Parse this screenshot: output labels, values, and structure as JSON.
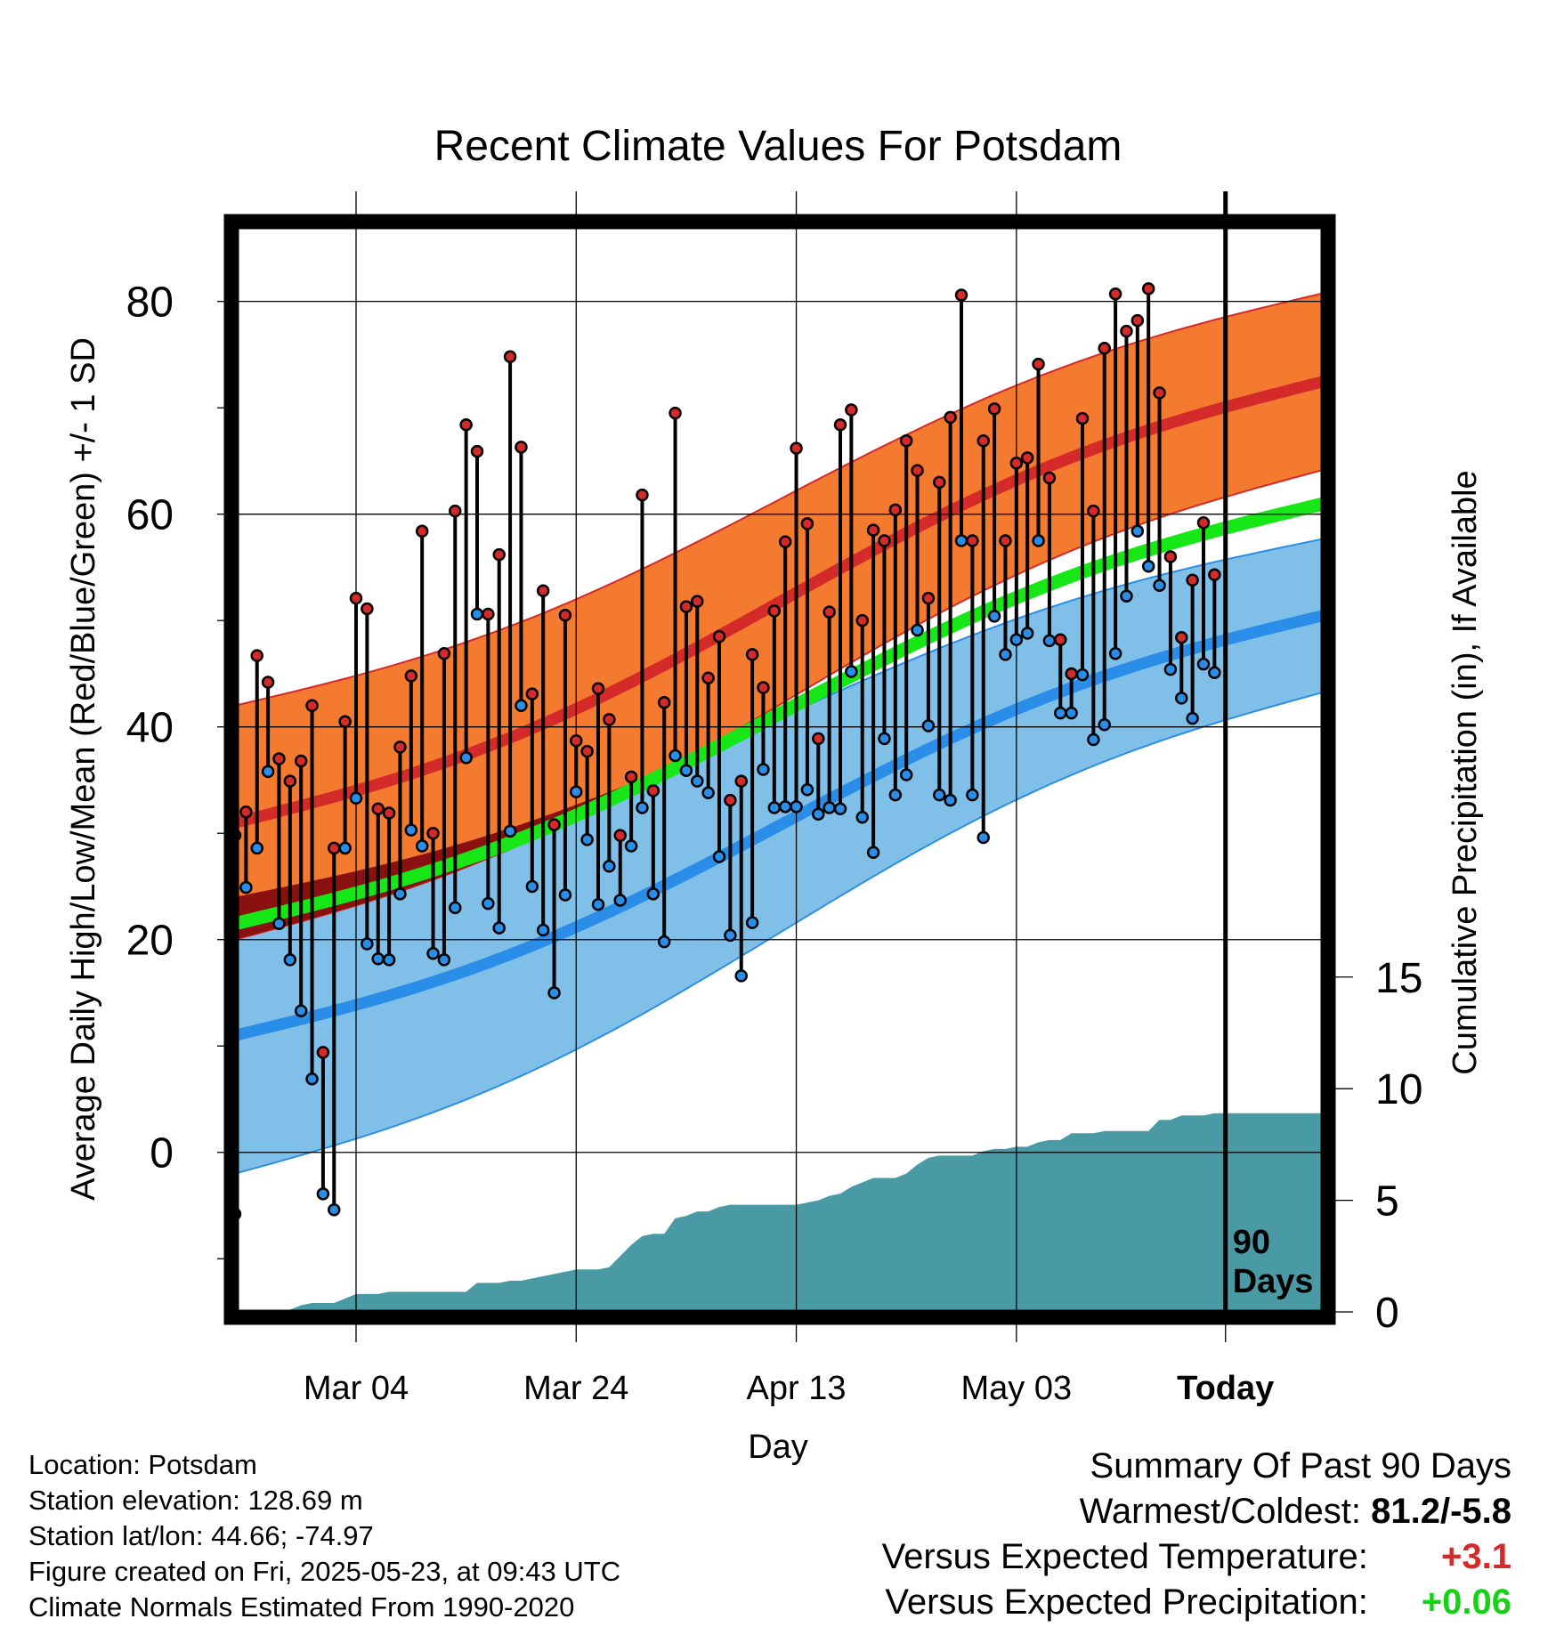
{
  "chart_data": {
    "type": "line",
    "title": "Recent Climate Values For Potsdam",
    "xlabel": "Day",
    "ylabel": "Average Daily High/Low/Mean (Red/Blue/Green) +/- 1 SD",
    "ylabel_right": "Cumulative Precipitation (in), If Available",
    "x_ticks": [
      "Mar 04",
      "Mar 24",
      "Apr 13",
      "May 03",
      "Today"
    ],
    "x_range_days": [
      -90,
      9
    ],
    "today_label": "90\nDays",
    "y_ticks": [
      0,
      20,
      40,
      60,
      80
    ],
    "ylim": [
      -15,
      87
    ],
    "y2_ticks": [
      0,
      5,
      10,
      15
    ],
    "y2lim": [
      0,
      48.6
    ],
    "grid": true,
    "colors": {
      "high_band": "#f47a30",
      "high_mean": "#d42a2a",
      "low_band": "#80c0e8",
      "low_mean": "#2a8ee8",
      "mean_line": "#17e617",
      "overlap": "#8b1010",
      "precip": "#4a9aa6",
      "obs_high": "#d42a2a",
      "obs_low": "#2a8ee8"
    },
    "normals": {
      "high_mean": {
        "start": 31,
        "end": 72.5
      },
      "high_sd": {
        "start": 11,
        "end": 8.3
      },
      "low_mean": {
        "start": 11,
        "end": 50.5
      },
      "low_sd": {
        "start": 13,
        "end": 7.2
      },
      "mean": {
        "start": 21.5,
        "end": 61
      }
    },
    "series": [
      {
        "name": "High",
        "values": [
          29.8,
          32,
          46.7,
          44.2,
          37,
          34.9,
          36.8,
          42,
          9.4,
          28.6,
          40.5,
          52.1,
          51.1,
          32.3,
          31.9,
          38.1,
          44.8,
          58.4,
          30,
          46.9,
          60.3,
          68.4,
          65.9,
          50.6,
          56.2,
          74.8,
          66.3,
          43.1,
          52.8,
          30.8,
          50.5,
          38.7,
          37.7,
          43.6,
          40.7,
          29.8,
          35.3,
          61.8,
          34,
          42.3,
          69.5,
          51.3,
          51.8,
          44.6,
          48.5,
          33.1,
          34.9,
          46.8,
          43.7,
          50.9,
          57.4,
          66.2,
          59.1,
          38.9,
          50.8,
          68.4,
          69.8,
          50,
          58.5,
          57.5,
          60.4,
          66.9,
          64.1,
          52.1,
          63,
          69.1,
          80.6,
          57.5,
          66.9,
          69.9,
          57.5,
          64.8,
          65.3,
          74.1,
          63.4,
          48.2,
          45,
          69,
          60.3,
          75.6,
          80.7,
          77.2,
          78.2,
          81.2,
          71.4,
          56,
          48.4,
          53.8,
          59.2,
          54.3
        ]
      },
      {
        "name": "Low",
        "values": [
          -5.8,
          24.9,
          28.6,
          35.8,
          21.5,
          18.1,
          13.3,
          6.9,
          -3.9,
          -5.4,
          28.6,
          33.3,
          19.6,
          18.2,
          18.1,
          24.3,
          30.3,
          28.8,
          18.7,
          18.1,
          23,
          37.1,
          50.6,
          23.4,
          21.1,
          30.2,
          42,
          25,
          20.9,
          15,
          24.2,
          33.9,
          29.4,
          23.3,
          26.9,
          23.7,
          28.8,
          32.4,
          24.3,
          19.8,
          37.3,
          35.9,
          34.9,
          33.8,
          27.8,
          20.4,
          16.6,
          21.6,
          36,
          32.4,
          32.5,
          32.5,
          34.1,
          31.8,
          32.4,
          32.3,
          45.2,
          31.5,
          28.2,
          38.9,
          33.6,
          35.5,
          49.1,
          40.1,
          33.6,
          33.1,
          57.5,
          33.6,
          29.6,
          50.4,
          46.8,
          48.2,
          48.8,
          57.5,
          48.1,
          41.3,
          41.3,
          44.9,
          38.8,
          40.2,
          46.9,
          52.3,
          58.4,
          55.1,
          53.3,
          45.4,
          42.7,
          40.8,
          45.9,
          45.1
        ]
      }
    ],
    "precip_cumulative": [
      0,
      0,
      0,
      0,
      0,
      0.1,
      0.3,
      0.4,
      0.4,
      0.4,
      0.6,
      0.8,
      0.8,
      0.8,
      0.9,
      0.9,
      0.9,
      0.9,
      0.9,
      0.9,
      0.9,
      0.9,
      1.3,
      1.3,
      1.3,
      1.4,
      1.4,
      1.5,
      1.6,
      1.7,
      1.8,
      1.9,
      1.9,
      1.9,
      2.0,
      2.5,
      3.0,
      3.4,
      3.5,
      3.5,
      4.2,
      4.3,
      4.5,
      4.5,
      4.7,
      4.8,
      4.8,
      4.8,
      4.8,
      4.8,
      4.8,
      4.8,
      4.9,
      5.0,
      5.2,
      5.3,
      5.6,
      5.8,
      6.0,
      6.0,
      6.0,
      6.2,
      6.6,
      6.9,
      7.0,
      7.0,
      7.0,
      7.0,
      7.2,
      7.3,
      7.3,
      7.4,
      7.4,
      7.6,
      7.7,
      7.7,
      8.0,
      8.0,
      8.0,
      8.1,
      8.1,
      8.1,
      8.1,
      8.1,
      8.6,
      8.6,
      8.8,
      8.8,
      8.8,
      8.9
    ]
  },
  "info": {
    "location": "Location: Potsdam",
    "elevation": "Station elevation: 128.69 m",
    "latlon": "Station lat/lon: 44.66; -74.97",
    "created": "Figure created on Fri, 2025-05-23, at 09:43 UTC",
    "normals": "Climate Normals Estimated From 1990-2020"
  },
  "summary": {
    "title": "Summary Of Past 90 Days",
    "warm_cold_label": "Warmest/Coldest:",
    "warm_cold_value": "81.2/-5.8",
    "temp_label": "Versus Expected Temperature:",
    "temp_value": "+3.1",
    "temp_color": "#d42a2a",
    "precip_label": "Versus Expected Precipitation:",
    "precip_value": "+0.06",
    "precip_color": "#17d117"
  }
}
